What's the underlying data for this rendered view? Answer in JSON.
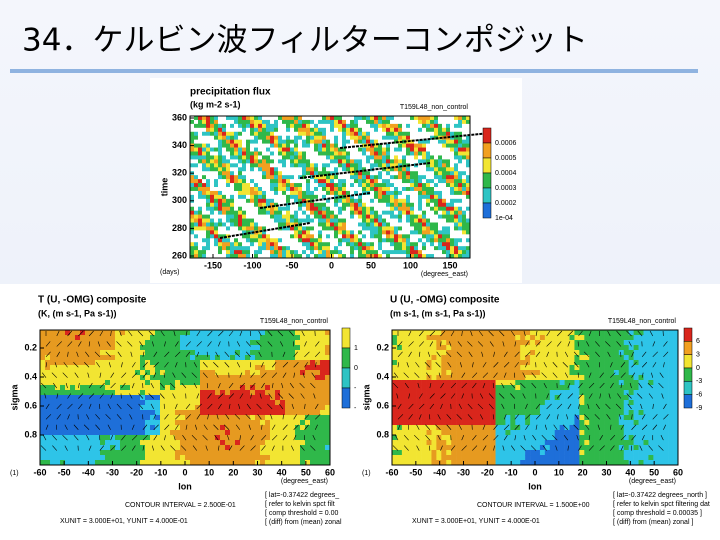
{
  "title": "34．ケルビン波フィルターコンポジット",
  "top_panel": {
    "title": "precipitation flux",
    "units": "(kg m-2 s-1)",
    "run": "T159L48_non_control",
    "y_label": "time",
    "yticks": [
      "360",
      "340",
      "320",
      "300",
      "280",
      "260"
    ],
    "xticks": [
      "-150",
      "-100",
      "-50",
      "0",
      "50",
      "100",
      "150"
    ],
    "x_start": "(days)",
    "x_unit": "(degrees_east)",
    "colorbar": [
      "0.0006",
      "0.0005",
      "0.0004",
      "0.0003",
      "0.0002",
      "1e-04"
    ]
  },
  "bottom_panels": [
    {
      "title": "T (U, -OMG) composite",
      "units": "(K, (m s-1, Pa s-1))",
      "run": "T159L48_non_control",
      "y_label": "sigma",
      "yticks": [
        "0.2",
        "0.4",
        "0.6",
        "0.8"
      ],
      "xticks": [
        "-60",
        "-50",
        "-40",
        "-30",
        "-20",
        "-10",
        "0",
        "10",
        "20",
        "30",
        "40",
        "50",
        "60"
      ],
      "x_start": "(1)",
      "x_unit": "(degrees_east)",
      "x_label": "lon",
      "colorbar": [
        "1",
        "0",
        "-",
        "-"
      ],
      "contour": "CONTOUR INTERVAL = 2.500E-01",
      "units_line": "XUNIT = 3.000E+01, YUNIT = 4.000E-01",
      "notes": [
        "[ lat=-0.37422 degrees_",
        "[ refer to kelvin spct filt",
        "[ comp threshold = 0.00",
        "[ (diff) from (mean) zonal"
      ]
    },
    {
      "title": "U (U, -OMG) composite",
      "units": "(m s-1, (m s-1, Pa s-1))",
      "run": "T159L48_non_control",
      "y_label": "sigma",
      "yticks": [
        "0.2",
        "0.4",
        "0.6",
        "0.8"
      ],
      "xticks": [
        "-60",
        "-50",
        "-40",
        "-30",
        "-20",
        "-10",
        "0",
        "10",
        "20",
        "30",
        "40",
        "50",
        "60"
      ],
      "x_start": "(1)",
      "x_unit": "(degrees_east)",
      "x_label": "lon",
      "colorbar": [
        "6",
        "3",
        "0",
        "-3",
        "-6",
        "-9"
      ],
      "contour": "CONTOUR INTERVAL = 1.500E+00",
      "units_line": "XUNIT = 3.000E+01, YUNIT = 4.000E-01",
      "notes": [
        "[ lat=-0.37422 degrees_north ]",
        "[ refer to kelvin spct filtering dat",
        "[ comp threshold = 0.00035 ]",
        "[ (diff) from (mean) zonal ]"
      ]
    }
  ]
}
